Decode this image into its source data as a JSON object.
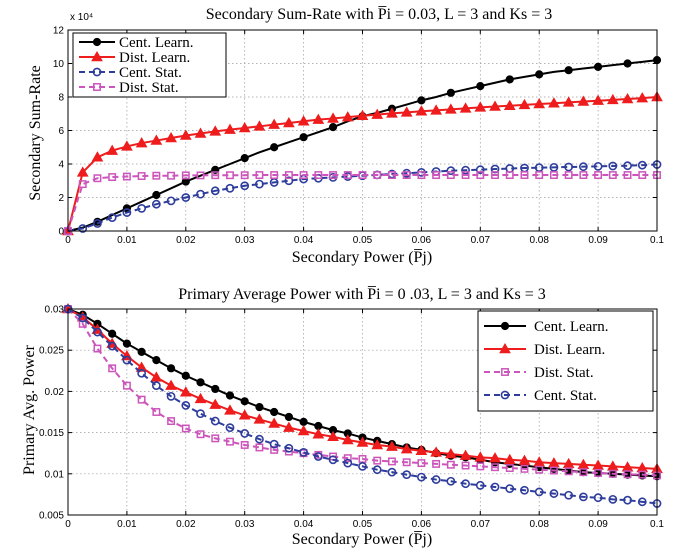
{
  "colors": {
    "cent_learn": "#000000",
    "dist_learn": "#ee1c1c",
    "cent_stat": "#2e3d9c",
    "dist_stat": "#cc55bb"
  },
  "chart_data": [
    {
      "type": "line",
      "title": "Secondary Sum-Rate with P̅i = 0.03,  L = 3  and  Ks = 3",
      "xlabel": "Secondary Power (P̅j)",
      "ylabel": "Secondary  Sum-Rate",
      "y_multiplier": "x 10⁴",
      "xlim": [
        0,
        0.1
      ],
      "ylim": [
        0,
        12
      ],
      "xticks": [
        "0",
        "0.01",
        "0.02",
        "0.03",
        "0.04",
        "0.05",
        "0.06",
        "0.07",
        "0.08",
        "0.09",
        "0.1"
      ],
      "yticks": [
        "0",
        "2",
        "4",
        "6",
        "8",
        "10",
        "12"
      ],
      "grid": true,
      "legend_position": "top-left",
      "series": [
        {
          "name": "Cent. Learn.",
          "color_key": "cent_learn",
          "marker": "filled-circle",
          "style": "solid",
          "marker_every": 2,
          "x": [
            0,
            0.0025,
            0.005,
            0.0075,
            0.01,
            0.0125,
            0.015,
            0.0175,
            0.02,
            0.0225,
            0.025,
            0.0275,
            0.03,
            0.0325,
            0.035,
            0.0375,
            0.04,
            0.0425,
            0.045,
            0.0475,
            0.05,
            0.0525,
            0.055,
            0.0575,
            0.06,
            0.0625,
            0.065,
            0.0675,
            0.07,
            0.0725,
            0.075,
            0.0775,
            0.08,
            0.0825,
            0.085,
            0.0875,
            0.09,
            0.0925,
            0.095,
            0.0975,
            0.1
          ],
          "y": [
            0,
            0.2,
            0.55,
            0.95,
            1.35,
            1.75,
            2.15,
            2.55,
            2.95,
            3.3,
            3.65,
            4.0,
            4.35,
            4.7,
            5.0,
            5.3,
            5.6,
            5.9,
            6.2,
            6.55,
            6.85,
            7.05,
            7.3,
            7.55,
            7.8,
            8.0,
            8.25,
            8.45,
            8.65,
            8.85,
            9.05,
            9.2,
            9.35,
            9.5,
            9.6,
            9.7,
            9.8,
            9.9,
            10.0,
            10.1,
            10.2
          ]
        },
        {
          "name": "Dist. Learn.",
          "color_key": "dist_learn",
          "marker": "filled-triangle",
          "style": "solid",
          "marker_every": 1,
          "x": [
            0,
            0.0025,
            0.005,
            0.0075,
            0.01,
            0.0125,
            0.015,
            0.0175,
            0.02,
            0.0225,
            0.025,
            0.0275,
            0.03,
            0.0325,
            0.035,
            0.0375,
            0.04,
            0.0425,
            0.045,
            0.0475,
            0.05,
            0.0525,
            0.055,
            0.0575,
            0.06,
            0.0625,
            0.065,
            0.0675,
            0.07,
            0.0725,
            0.075,
            0.0775,
            0.08,
            0.0825,
            0.085,
            0.0875,
            0.09,
            0.0925,
            0.095,
            0.0975,
            0.1
          ],
          "y": [
            0,
            3.5,
            4.4,
            4.8,
            5.05,
            5.25,
            5.4,
            5.55,
            5.7,
            5.82,
            5.95,
            6.05,
            6.15,
            6.25,
            6.35,
            6.45,
            6.55,
            6.65,
            6.72,
            6.8,
            6.88,
            6.95,
            7.02,
            7.08,
            7.15,
            7.2,
            7.26,
            7.32,
            7.38,
            7.43,
            7.48,
            7.53,
            7.58,
            7.63,
            7.68,
            7.73,
            7.78,
            7.83,
            7.88,
            7.93,
            8.0
          ]
        },
        {
          "name": "Cent. Stat.",
          "color_key": "cent_stat",
          "marker": "open-circle",
          "style": "dashed",
          "marker_every": 1,
          "x": [
            0,
            0.0025,
            0.005,
            0.0075,
            0.01,
            0.0125,
            0.015,
            0.0175,
            0.02,
            0.0225,
            0.025,
            0.0275,
            0.03,
            0.0325,
            0.035,
            0.0375,
            0.04,
            0.0425,
            0.045,
            0.0475,
            0.05,
            0.0525,
            0.055,
            0.0575,
            0.06,
            0.0625,
            0.065,
            0.0675,
            0.07,
            0.0725,
            0.075,
            0.0775,
            0.08,
            0.0825,
            0.085,
            0.0875,
            0.09,
            0.0925,
            0.095,
            0.0975,
            0.1
          ],
          "y": [
            0,
            0.15,
            0.45,
            0.8,
            1.1,
            1.35,
            1.6,
            1.8,
            2.0,
            2.2,
            2.4,
            2.55,
            2.7,
            2.8,
            2.9,
            3.0,
            3.1,
            3.15,
            3.2,
            3.25,
            3.3,
            3.35,
            3.4,
            3.45,
            3.5,
            3.55,
            3.6,
            3.63,
            3.66,
            3.7,
            3.73,
            3.76,
            3.78,
            3.8,
            3.82,
            3.84,
            3.86,
            3.88,
            3.9,
            3.93,
            3.97
          ]
        },
        {
          "name": "Dist. Stat.",
          "color_key": "dist_stat",
          "marker": "open-square",
          "style": "dashed",
          "marker_every": 1,
          "x": [
            0,
            0.0025,
            0.005,
            0.0075,
            0.01,
            0.0125,
            0.015,
            0.0175,
            0.02,
            0.0225,
            0.025,
            0.0275,
            0.03,
            0.0325,
            0.035,
            0.0375,
            0.04,
            0.0425,
            0.045,
            0.0475,
            0.05,
            0.0525,
            0.055,
            0.0575,
            0.06,
            0.0625,
            0.065,
            0.0675,
            0.07,
            0.0725,
            0.075,
            0.0775,
            0.08,
            0.0825,
            0.085,
            0.0875,
            0.09,
            0.0925,
            0.095,
            0.0975,
            0.1
          ],
          "y": [
            0,
            2.8,
            3.15,
            3.22,
            3.25,
            3.28,
            3.3,
            3.3,
            3.32,
            3.32,
            3.33,
            3.33,
            3.33,
            3.34,
            3.34,
            3.34,
            3.34,
            3.34,
            3.34,
            3.34,
            3.34,
            3.34,
            3.34,
            3.34,
            3.34,
            3.34,
            3.34,
            3.34,
            3.34,
            3.34,
            3.34,
            3.34,
            3.34,
            3.34,
            3.34,
            3.34,
            3.34,
            3.34,
            3.34,
            3.34,
            3.34
          ]
        }
      ]
    },
    {
      "type": "line",
      "title": "Primary Average Power with P̅i = 0 .03,  L = 3  and  Ks = 3",
      "xlabel": "Secondary Power (P̅j)",
      "ylabel": "Primary Avg. Power",
      "xlim": [
        0,
        0.1
      ],
      "ylim": [
        0.005,
        0.03
      ],
      "xticks": [
        "0",
        "0.01",
        "0.02",
        "0.03",
        "0.04",
        "0.05",
        "0.06",
        "0.07",
        "0.08",
        "0.09",
        "0.1"
      ],
      "yticks": [
        "0.005",
        "0.01",
        "0.015",
        "0.02",
        "0.025",
        "0.03"
      ],
      "grid": true,
      "legend_position": "top-right",
      "series": [
        {
          "name": "Cent. Learn.",
          "color_key": "cent_learn",
          "marker": "filled-circle",
          "style": "solid",
          "marker_every": 1,
          "x": [
            0,
            0.0025,
            0.005,
            0.0075,
            0.01,
            0.0125,
            0.015,
            0.0175,
            0.02,
            0.0225,
            0.025,
            0.0275,
            0.03,
            0.0325,
            0.035,
            0.0375,
            0.04,
            0.0425,
            0.045,
            0.0475,
            0.05,
            0.0525,
            0.055,
            0.0575,
            0.06,
            0.0625,
            0.065,
            0.0675,
            0.07,
            0.0725,
            0.075,
            0.0775,
            0.08,
            0.0825,
            0.085,
            0.0875,
            0.09,
            0.0925,
            0.095,
            0.0975,
            0.1
          ],
          "y": [
            0.03,
            0.0293,
            0.0282,
            0.027,
            0.0258,
            0.0248,
            0.0238,
            0.0228,
            0.0219,
            0.0211,
            0.0203,
            0.0195,
            0.0188,
            0.0181,
            0.0175,
            0.0169,
            0.0163,
            0.0158,
            0.0153,
            0.0149,
            0.0144,
            0.014,
            0.0136,
            0.0132,
            0.0129,
            0.0125,
            0.0122,
            0.012,
            0.0117,
            0.0114,
            0.0112,
            0.011,
            0.0108,
            0.0106,
            0.0104,
            0.0102,
            0.0101,
            0.01,
            0.0099,
            0.0098,
            0.0097
          ]
        },
        {
          "name": "Dist. Learn.",
          "color_key": "dist_learn",
          "marker": "filled-triangle",
          "style": "solid",
          "marker_every": 1,
          "x": [
            0,
            0.0025,
            0.005,
            0.0075,
            0.01,
            0.0125,
            0.015,
            0.0175,
            0.02,
            0.0225,
            0.025,
            0.0275,
            0.03,
            0.0325,
            0.035,
            0.0375,
            0.04,
            0.0425,
            0.045,
            0.0475,
            0.05,
            0.0525,
            0.055,
            0.0575,
            0.06,
            0.0625,
            0.065,
            0.0675,
            0.07,
            0.0725,
            0.075,
            0.0775,
            0.08,
            0.0825,
            0.085,
            0.0875,
            0.09,
            0.0925,
            0.095,
            0.0975,
            0.1
          ],
          "y": [
            0.03,
            0.029,
            0.0275,
            0.0258,
            0.0243,
            0.0229,
            0.0217,
            0.0207,
            0.0199,
            0.0191,
            0.0184,
            0.0177,
            0.0171,
            0.0166,
            0.0161,
            0.0156,
            0.0152,
            0.0148,
            0.0145,
            0.0141,
            0.0138,
            0.0135,
            0.0133,
            0.013,
            0.0128,
            0.0126,
            0.0124,
            0.0122,
            0.012,
            0.0119,
            0.0117,
            0.0116,
            0.0114,
            0.0113,
            0.0112,
            0.0111,
            0.011,
            0.0109,
            0.0108,
            0.0107,
            0.0106
          ]
        },
        {
          "name": "Dist. Stat.",
          "color_key": "dist_stat",
          "marker": "open-square",
          "style": "dashed",
          "marker_every": 1,
          "x": [
            0,
            0.0025,
            0.005,
            0.0075,
            0.01,
            0.0125,
            0.015,
            0.0175,
            0.02,
            0.0225,
            0.025,
            0.0275,
            0.03,
            0.0325,
            0.035,
            0.0375,
            0.04,
            0.0425,
            0.045,
            0.0475,
            0.05,
            0.0525,
            0.055,
            0.0575,
            0.06,
            0.0625,
            0.065,
            0.0675,
            0.07,
            0.0725,
            0.075,
            0.0775,
            0.08,
            0.0825,
            0.085,
            0.0875,
            0.09,
            0.0925,
            0.095,
            0.0975,
            0.1
          ],
          "y": [
            0.03,
            0.0282,
            0.0252,
            0.0228,
            0.0207,
            0.019,
            0.0175,
            0.0164,
            0.0155,
            0.0148,
            0.0143,
            0.0139,
            0.0135,
            0.0132,
            0.0129,
            0.0127,
            0.0125,
            0.0123,
            0.0121,
            0.0119,
            0.0118,
            0.0116,
            0.0115,
            0.0114,
            0.0113,
            0.0112,
            0.0111,
            0.011,
            0.0109,
            0.0108,
            0.0107,
            0.0106,
            0.0105,
            0.0104,
            0.0103,
            0.0102,
            0.0101,
            0.01,
            0.00995,
            0.0099,
            0.0098
          ]
        },
        {
          "name": "Cent. Stat.",
          "color_key": "cent_stat",
          "marker": "open-circle",
          "style": "dashed",
          "marker_every": 1,
          "x": [
            0,
            0.0025,
            0.005,
            0.0075,
            0.01,
            0.0125,
            0.015,
            0.0175,
            0.02,
            0.0225,
            0.025,
            0.0275,
            0.03,
            0.0325,
            0.035,
            0.0375,
            0.04,
            0.0425,
            0.045,
            0.0475,
            0.05,
            0.0525,
            0.055,
            0.0575,
            0.06,
            0.0625,
            0.065,
            0.0675,
            0.07,
            0.0725,
            0.075,
            0.0775,
            0.08,
            0.0825,
            0.085,
            0.0875,
            0.09,
            0.0925,
            0.095,
            0.0975,
            0.1
          ],
          "y": [
            0.03,
            0.0289,
            0.0272,
            0.0255,
            0.0238,
            0.0222,
            0.0207,
            0.0194,
            0.0183,
            0.0173,
            0.0164,
            0.0156,
            0.0149,
            0.0142,
            0.0136,
            0.0131,
            0.0126,
            0.0121,
            0.0117,
            0.0113,
            0.0109,
            0.0105,
            0.0102,
            0.0099,
            0.0096,
            0.0093,
            0.0091,
            0.0088,
            0.0086,
            0.0084,
            0.0082,
            0.008,
            0.0078,
            0.0076,
            0.0074,
            0.0072,
            0.0071,
            0.0069,
            0.0068,
            0.0066,
            0.0064
          ]
        }
      ]
    }
  ]
}
